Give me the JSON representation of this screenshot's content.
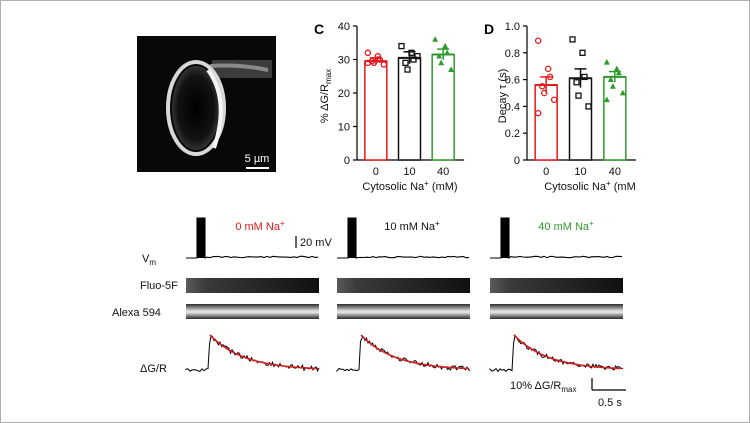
{
  "micrograph": {
    "scalebar_label": "5 µm"
  },
  "colors": {
    "na0": "#e41a1c",
    "na10": "#111111",
    "na40": "#2e9a2e",
    "fit": "#d42020"
  },
  "chart_data": [
    {
      "id": "C",
      "type": "bar",
      "panel_letter": "C",
      "categories": [
        "0",
        "10",
        "40"
      ],
      "values": [
        29.5,
        30.5,
        31.5
      ],
      "errors": [
        1.0,
        1.8,
        1.6
      ],
      "points": [
        [
          32,
          31,
          30,
          29.5,
          29,
          28.5,
          29,
          30
        ],
        [
          34,
          32,
          30,
          29,
          27,
          31
        ],
        [
          36,
          34,
          32,
          31,
          29,
          27
        ]
      ],
      "markers": [
        "circle",
        "square",
        "triangle"
      ],
      "ylim": [
        0,
        40
      ],
      "yticks": [
        "0",
        "10",
        "20",
        "30",
        "40"
      ],
      "xlabel_main": "Cytosolic Na",
      "xlabel_sup": "+",
      "xlabel_unit": " (mM)",
      "ylabel_main": "% ΔG/R",
      "ylabel_sub": "max"
    },
    {
      "id": "D",
      "type": "bar",
      "panel_letter": "D",
      "categories": [
        "0",
        "10",
        "40"
      ],
      "values": [
        0.56,
        0.61,
        0.62
      ],
      "errors": [
        0.06,
        0.07,
        0.04
      ],
      "points": [
        [
          0.89,
          0.68,
          0.62,
          0.55,
          0.5,
          0.45,
          0.35
        ],
        [
          0.9,
          0.8,
          0.62,
          0.58,
          0.48,
          0.4
        ],
        [
          0.73,
          0.68,
          0.65,
          0.6,
          0.55,
          0.5,
          0.45
        ]
      ],
      "markers": [
        "circle",
        "square",
        "triangle"
      ],
      "ylim": [
        0,
        1.0
      ],
      "yticks": [
        "0",
        "0.2",
        "0.4",
        "0.6",
        "0.8",
        "1.0"
      ],
      "xlabel_main": "Cytosolic Na",
      "xlabel_sup": "+",
      "xlabel_unit": " (mM",
      "ylabel_main": "Decay τ (s)"
    }
  ],
  "traces": {
    "conditions": [
      {
        "label_main": "0 mM Na",
        "label_sup": "+"
      },
      {
        "label_main": "10 mM Na",
        "label_sup": "+"
      },
      {
        "label_main": "40 mM Na",
        "label_sup": "+"
      }
    ],
    "row_labels": {
      "vm_main": "V",
      "vm_sub": "m",
      "fluo": "Fluo-5F",
      "alexa": "Alexa 594",
      "dgr": "ΔG/R"
    },
    "scales": {
      "voltage": "20 mV",
      "dgr_main": "10% ΔG/R",
      "dgr_sub": "max",
      "time": "0.5 s"
    }
  }
}
